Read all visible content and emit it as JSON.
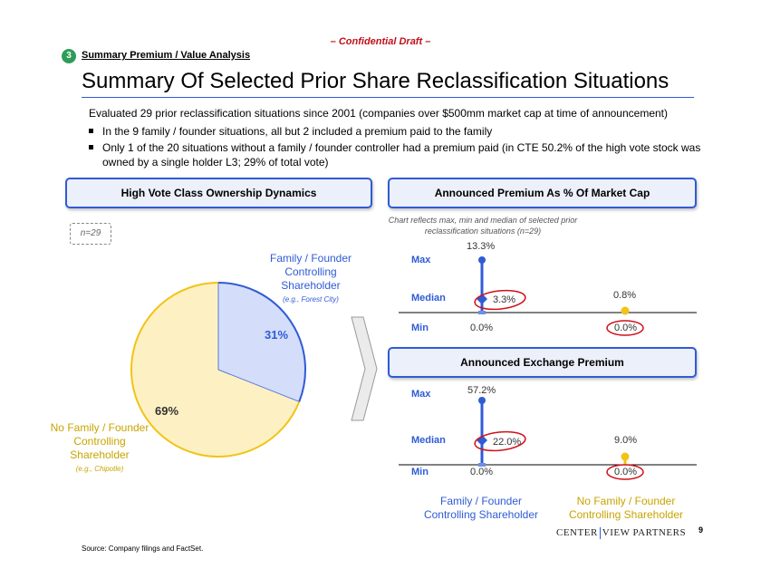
{
  "header": {
    "confidential": "– Confidential Draft –",
    "section_number": "3",
    "section_title": "Summary Premium / Value Analysis",
    "title": "Summary Of Selected Prior Share Reclassification Situations"
  },
  "intro": "Evaluated 29 prior reclassification situations since 2001 (companies over $500mm market cap at time of announcement)",
  "bullets": [
    "In the 9 family / founder situations, all but 2 included a premium paid to the family",
    "Only 1 of the 20 situations without a family / founder controller had a premium paid (in CTE 50.2% of the high vote stock was owned by a single holder L3; 29% of total vote)"
  ],
  "left_panel": {
    "header": "High Vote Class Ownership Dynamics",
    "n_label": "n=29",
    "family_label_lines": [
      "Family / Founder",
      "Controlling",
      "Shareholder"
    ],
    "family_example": "(e.g., Forest City)",
    "nofamily_label_lines": [
      "No Family / Founder",
      "Controlling",
      "Shareholder"
    ],
    "nofamily_example": "(e.g., Chipotle)"
  },
  "chart_data": [
    {
      "type": "pie",
      "slices": [
        {
          "label": "Family / Founder Controlling Shareholder",
          "value": 31,
          "display": "31%",
          "color": "#d4defa",
          "edge": "#2f5bd6"
        },
        {
          "label": "No Family / Founder Controlling Shareholder",
          "value": 69,
          "display": "69%",
          "color": "#fdf1c4",
          "edge": "#f2c316"
        }
      ]
    },
    {
      "type": "range",
      "title": "Announced Premium As % Of Market Cap",
      "rows": [
        "Max",
        "Median",
        "Min"
      ],
      "groups": [
        {
          "name": "Family / Founder Controlling Shareholder",
          "max": 13.3,
          "median": 3.3,
          "min": 0.0,
          "labels": {
            "max": "13.3%",
            "median": "3.3%",
            "min": "0.0%"
          }
        },
        {
          "name": "No Family / Founder Controlling Shareholder",
          "max": 0.8,
          "median": null,
          "min": 0.0,
          "labels": {
            "max": "0.8%",
            "min": "0.0%"
          }
        }
      ]
    },
    {
      "type": "range",
      "title": "Announced Exchange Premium",
      "rows": [
        "Max",
        "Median",
        "Min"
      ],
      "groups": [
        {
          "name": "Family / Founder Controlling Shareholder",
          "max": 57.2,
          "median": 22.0,
          "min": 0.0,
          "labels": {
            "max": "57.2%",
            "median": "22.0%",
            "min": "0.0%"
          }
        },
        {
          "name": "No Family / Founder Controlling Shareholder",
          "max": 9.0,
          "median": null,
          "min": 0.0,
          "labels": {
            "max": "9.0%",
            "min": "0.0%"
          }
        }
      ]
    }
  ],
  "right_panel": {
    "header1": "Announced Premium As % Of Market Cap",
    "note": "Chart reflects max, min and median of selected prior reclassification situations (n=29)",
    "header2": "Announced Exchange Premium",
    "row_labels": {
      "max": "Max",
      "median": "Median",
      "min": "Min"
    },
    "group1_lines": [
      "Family / Founder",
      "Controlling Shareholder"
    ],
    "group2_lines": [
      "No Family / Founder",
      "Controlling Shareholder"
    ]
  },
  "colors": {
    "accent_blue": "#2f5bd6",
    "gold": "#f2c316",
    "highlight_red": "#d0101a",
    "section_green": "#2e9c58"
  },
  "footer": {
    "source": "Source: Company filings and FactSet.",
    "logo_left": "CENTER",
    "logo_right": "VIEW PARTNERS",
    "page_number": "9"
  }
}
